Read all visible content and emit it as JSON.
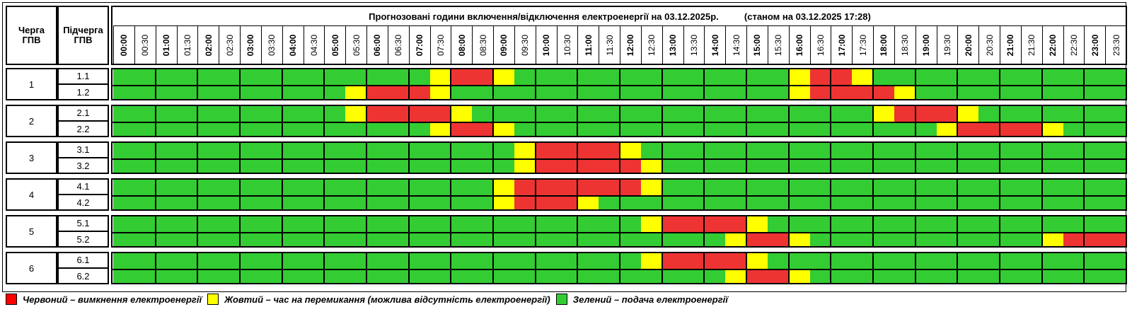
{
  "header": {
    "queue_label": "Черга\nГПВ",
    "subqueue_label": "Підчерга\nГПВ",
    "title": "Прогнозовані години включення/відключення електроенергії на 03.12.2025р.",
    "status": "(станом на 03.12.2025 17:28)"
  },
  "times": [
    "00:00",
    "00:30",
    "01:00",
    "01:30",
    "02:00",
    "02:30",
    "03:00",
    "03:30",
    "04:00",
    "04:30",
    "05:00",
    "05:30",
    "06:00",
    "06:30",
    "07:00",
    "07:30",
    "08:00",
    "08:30",
    "09:00",
    "09:30",
    "10:00",
    "10:30",
    "11:00",
    "11:30",
    "12:00",
    "12:30",
    "13:00",
    "13:30",
    "14:00",
    "14:30",
    "15:00",
    "15:30",
    "16:00",
    "16:30",
    "17:00",
    "17:30",
    "18:00",
    "18:30",
    "19:00",
    "19:30",
    "20:00",
    "20:30",
    "21:00",
    "21:30",
    "22:00",
    "22:30",
    "23:00",
    "23:30"
  ],
  "colors": {
    "G": "#33cc33",
    "R": "#ee3333",
    "Y": "#ffff00"
  },
  "groups": [
    {
      "label": "1",
      "subs": [
        {
          "label": "1.1",
          "slots": "GGGGGGGGGGGGGGGYRRYGGGGGGGGGGGGGYRRYGGGGGGGGGGGG"
        },
        {
          "label": "1.2",
          "slots": "GGGGGGGGGGGYRRRYGGGGGGGGGGGGGGGGYRRRRYGGGGGGGGGG"
        }
      ]
    },
    {
      "label": "2",
      "subs": [
        {
          "label": "2.1",
          "slots": "GGGGGGGGGGGYRRRRYGGGGGGGGGGGGGGGGGGGYRRRYGGGGGGG"
        },
        {
          "label": "2.2",
          "slots": "GGGGGGGGGGGGGGGYRRYGGGGGGGGGGGGGGGGGGGGYRRRRYGGG"
        }
      ]
    },
    {
      "label": "3",
      "subs": [
        {
          "label": "3.1",
          "slots": "GGGGGGGGGGGGGGGGGGGYRRRRYGGGGGGGGGGGGGGGGGGGGGGG"
        },
        {
          "label": "3.2",
          "slots": "GGGGGGGGGGGGGGGGGGGYRRRRRYGGGGGGGGGGGGGGGGGGGGGG"
        }
      ]
    },
    {
      "label": "4",
      "subs": [
        {
          "label": "4.1",
          "slots": "GGGGGGGGGGGGGGGGGGYRRRRRRYGGGGGGGGGGGGGGGGGGGGGG"
        },
        {
          "label": "4.2",
          "slots": "GGGGGGGGGGGGGGGGGGYRRRYGGGGGGGGGGGGGGGGGGGGGGGGG"
        }
      ]
    },
    {
      "label": "5",
      "subs": [
        {
          "label": "5.1",
          "slots": "GGGGGGGGGGGGGGGGGGGGGGGGGYRRRRYGGGGGGGGGGGGGGGGG"
        },
        {
          "label": "5.2",
          "slots": "GGGGGGGGGGGGGGGGGGGGGGGGGGGGGYRRYGGGGGGGGGGGYRRR"
        }
      ]
    },
    {
      "label": "6",
      "subs": [
        {
          "label": "6.1",
          "slots": "GGGGGGGGGGGGGGGGGGGGGGGGGYRRRRYGGGGGGGGGGGGGGGGG"
        },
        {
          "label": "6.2",
          "slots": "GGGGGGGGGGGGGGGGGGGGGGGGGGGGGYRRYGGGGGGGGGGGGGGG"
        }
      ]
    }
  ],
  "legend": [
    {
      "color": "#ff0000",
      "text": "Червоний – вимкнення електроенергії"
    },
    {
      "color": "#ffff00",
      "text": "Жовтий – час на перемикання (можлива відсутність електроенергії)"
    },
    {
      "color": "#33cc33",
      "text": "Зелений – подача електроенергії"
    }
  ]
}
